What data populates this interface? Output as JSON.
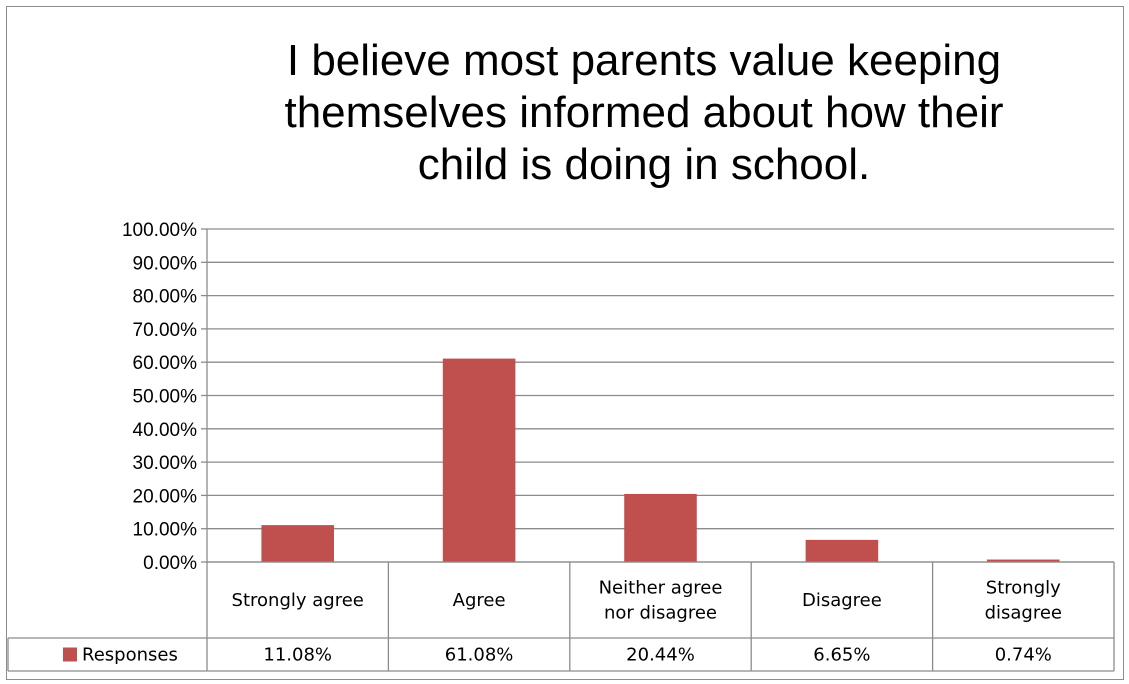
{
  "chart_data": {
    "type": "bar",
    "title_lines": [
      "I believe most parents value keeping",
      "themselves informed about how their",
      "child is doing in school."
    ],
    "categories": [
      [
        "Strongly agree"
      ],
      [
        "Agree"
      ],
      [
        "Neither agree",
        "nor disagree"
      ],
      [
        "Disagree"
      ],
      [
        "Strongly",
        "disagree"
      ]
    ],
    "series": [
      {
        "name": "Responses",
        "color": "#c0504d",
        "values": [
          11.08,
          61.08,
          20.44,
          6.65,
          0.74
        ],
        "value_labels": [
          "11.08%",
          "61.08%",
          "20.44%",
          "6.65%",
          "0.74%"
        ]
      }
    ],
    "ylim": [
      0,
      100
    ],
    "y_ticks": [
      "0.00%",
      "10.00%",
      "20.00%",
      "30.00%",
      "40.00%",
      "50.00%",
      "60.00%",
      "70.00%",
      "80.00%",
      "90.00%",
      "100.00%"
    ],
    "grid": true,
    "data_table": true,
    "legend": "in-data-table"
  }
}
